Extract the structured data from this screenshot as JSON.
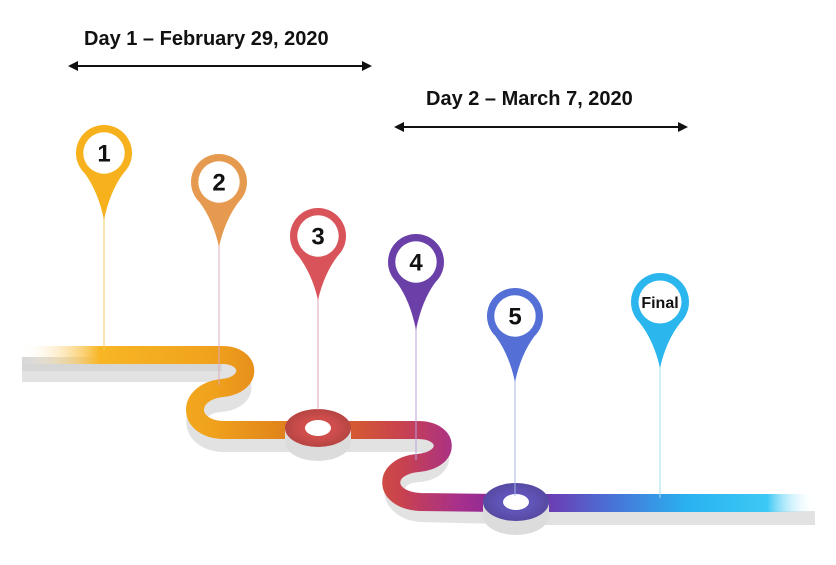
{
  "periods": [
    {
      "label": "Day 1 – February 29, 2020"
    },
    {
      "label": "Day 2 – March 7, 2020"
    }
  ],
  "milestones": [
    {
      "label": "1",
      "color": "#f7b11d"
    },
    {
      "label": "2",
      "color": "#e69a4f"
    },
    {
      "label": "3",
      "color": "#d9545a"
    },
    {
      "label": "4",
      "color": "#6a3fa8"
    },
    {
      "label": "5",
      "color": "#5470d6"
    },
    {
      "label": "Final",
      "color": "#2bb6ee"
    }
  ],
  "colors": {
    "road_start": "#f6a31a",
    "road_mid_orange": "#e2881b",
    "road_red": "#cc4b52",
    "road_purple": "#8c2a9a",
    "road_blue": "#29c2f2",
    "road_base": "#e0e0e0",
    "arrow": "#111111",
    "text": "#111111"
  }
}
